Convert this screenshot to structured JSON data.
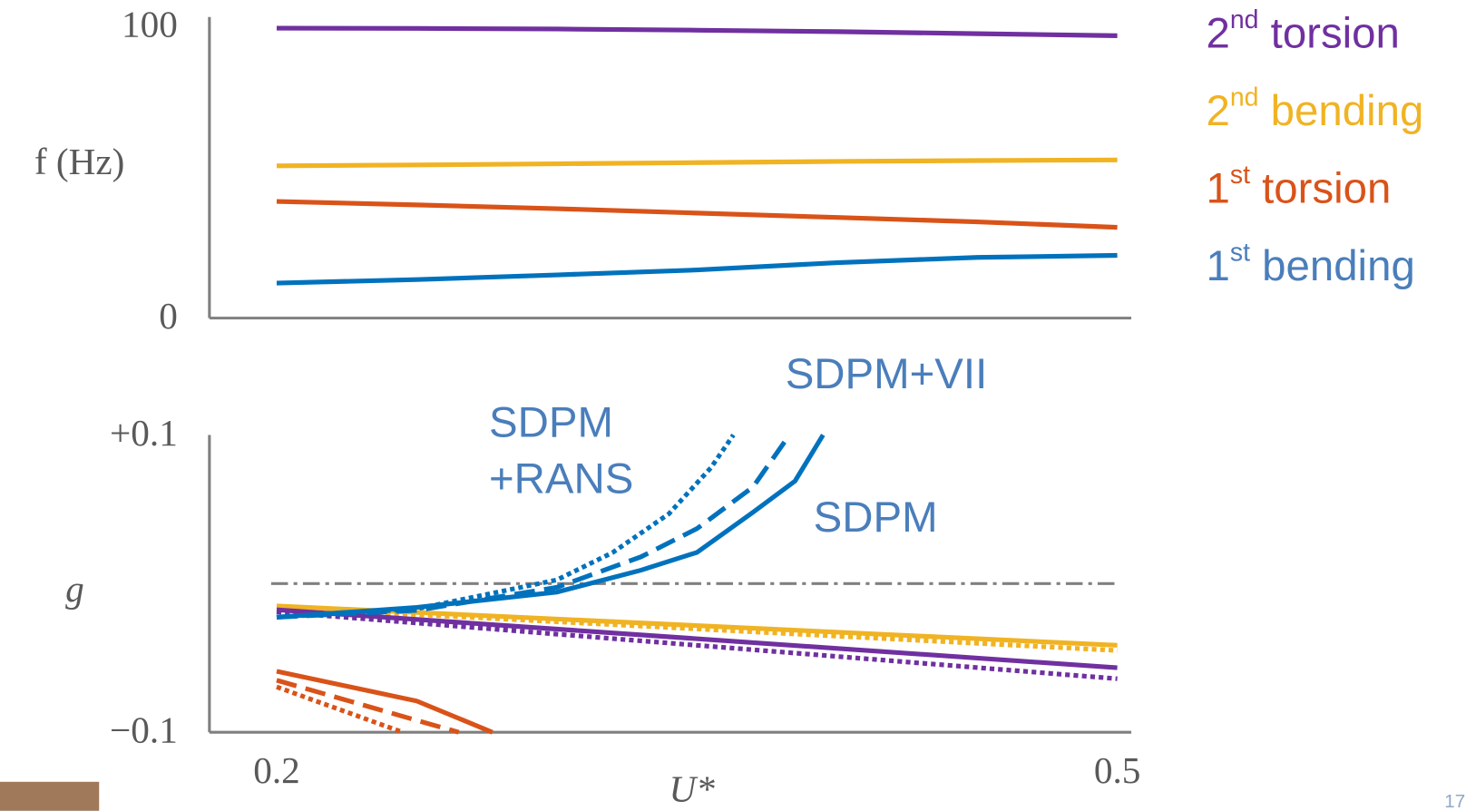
{
  "chart_data": [
    {
      "type": "line",
      "ylabel": "f (Hz)",
      "x": [
        0.2,
        0.25,
        0.3,
        0.35,
        0.4,
        0.45,
        0.5
      ],
      "xlim": [
        0.176,
        0.505
      ],
      "ylim": [
        0,
        100
      ],
      "yticks": [
        0,
        100
      ],
      "legend": "right",
      "series": [
        {
          "name": "2nd torsion",
          "color": "#7030a0",
          "values": [
            99.4,
            99.3,
            99.1,
            98.7,
            98.2,
            97.5,
            96.8
          ]
        },
        {
          "name": "2nd bending",
          "color": "#f0b323",
          "values": [
            52.2,
            52.5,
            52.9,
            53.3,
            53.7,
            54.0,
            54.2
          ]
        },
        {
          "name": "1st torsion",
          "color": "#d95319",
          "values": [
            40,
            38.8,
            37.5,
            36,
            34.5,
            33,
            31.1
          ]
        },
        {
          "name": "1st bending",
          "color": "#0072bd",
          "values": [
            12,
            13.2,
            14.8,
            16.5,
            19,
            20.8,
            21.5
          ]
        }
      ]
    },
    {
      "type": "line",
      "xlabel": "U*",
      "ylabel": "g",
      "xlim": [
        0.176,
        0.505
      ],
      "ylim": [
        -0.1,
        0.1
      ],
      "xticks": [
        0.2,
        0.5
      ],
      "yticks": [
        {
          "value": -0.1,
          "label": "−0.1"
        },
        {
          "value": 0.1,
          "label": "+0.1"
        }
      ],
      "reference_line": 0,
      "series": [
        {
          "color": "#f0b323",
          "style": "solid",
          "x": [
            0.2,
            0.5
          ],
          "values": [
            -0.015,
            -0.0415
          ]
        },
        {
          "color": "#f0b323",
          "style": "dotted",
          "x": [
            0.2,
            0.5
          ],
          "values": [
            -0.016,
            -0.045
          ]
        },
        {
          "color": "#7030a0",
          "style": "solid",
          "x": [
            0.2,
            0.5
          ],
          "values": [
            -0.0176,
            -0.0566
          ]
        },
        {
          "color": "#7030a0",
          "style": "dotted",
          "x": [
            0.2,
            0.5
          ],
          "values": [
            -0.019,
            -0.064
          ]
        },
        {
          "color": "#0072bd",
          "style": "solid",
          "x": [
            0.2,
            0.25,
            0.3,
            0.33,
            0.35,
            0.37,
            0.385,
            0.395
          ],
          "values": [
            -0.0226,
            -0.016,
            -0.0057,
            0.009,
            0.021,
            0.048,
            0.069,
            0.1
          ]
        },
        {
          "color": "#0072bd",
          "style": "dashed",
          "x": [
            0.2,
            0.25,
            0.3,
            0.33,
            0.35,
            0.37,
            0.383
          ],
          "values": [
            -0.0226,
            -0.018,
            -0.0025,
            0.018,
            0.037,
            0.065,
            0.1
          ]
        },
        {
          "color": "#0072bd",
          "style": "dotted",
          "x": [
            0.2,
            0.25,
            0.3,
            0.32,
            0.34,
            0.355,
            0.363
          ],
          "values": [
            -0.0226,
            -0.017,
            0.0025,
            0.021,
            0.047,
            0.078,
            0.1
          ]
        },
        {
          "color": "#d95319",
          "style": "solid",
          "x": [
            0.2,
            0.25,
            0.277
          ],
          "values": [
            -0.059,
            -0.079,
            -0.1
          ]
        },
        {
          "color": "#d95319",
          "style": "dashed",
          "x": [
            0.2,
            0.25,
            0.265
          ],
          "values": [
            -0.065,
            -0.092,
            -0.1
          ]
        },
        {
          "color": "#d95319",
          "style": "dotted",
          "x": [
            0.2,
            0.245
          ],
          "values": [
            -0.0695,
            -0.1
          ]
        }
      ],
      "annotations": [
        {
          "lines": [
            "SDPM+VII"
          ],
          "color": "#4a7ebb"
        },
        {
          "lines": [
            "SDPM",
            "+RANS"
          ],
          "color": "#4a7ebb"
        },
        {
          "lines": [
            "SDPM"
          ],
          "color": "#4a7ebb"
        }
      ]
    }
  ],
  "page_number": "17"
}
